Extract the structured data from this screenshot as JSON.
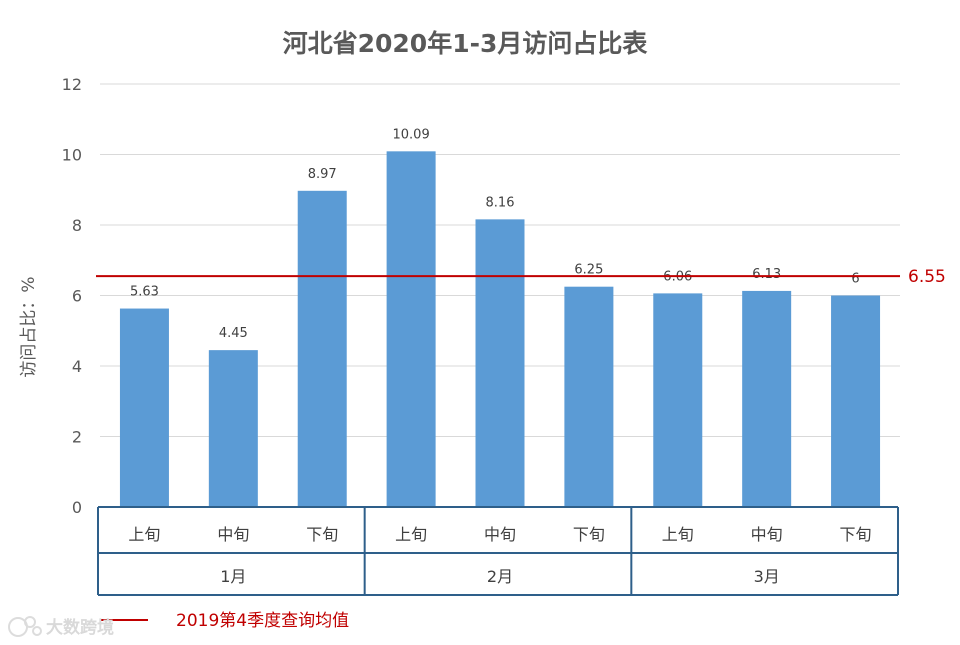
{
  "chart_data": {
    "type": "bar",
    "title": "河北省2020年1-3月访问占比表",
    "ylabel": "访问占比：%",
    "xlabel": "",
    "ylim": [
      0,
      12
    ],
    "yticks": [
      0,
      2,
      4,
      6,
      8,
      10,
      12
    ],
    "grid": true,
    "categories": [
      "上旬",
      "中旬",
      "下旬",
      "上旬",
      "中旬",
      "下旬",
      "上旬",
      "中旬",
      "下旬"
    ],
    "groups": [
      {
        "label": "1月",
        "count": 3
      },
      {
        "label": "2月",
        "count": 3
      },
      {
        "label": "3月",
        "count": 3
      }
    ],
    "series": [
      {
        "values": [
          5.63,
          4.45,
          8.97,
          10.09,
          8.16,
          6.25,
          6.06,
          6.13,
          6
        ],
        "labels": [
          "5.63",
          "4.45",
          "8.97",
          "10.09",
          "8.16",
          "6.25",
          "6.06",
          "6.13",
          "6"
        ],
        "color": "#5b9bd5"
      }
    ],
    "reference_line": {
      "value": 6.55,
      "label": "6.55",
      "legend": "2019第4季度查询均值",
      "color": "#c00000"
    },
    "legend_position": "bottom-left",
    "axis_color": "#2e5f8a",
    "grid_color": "#d9d9d9"
  },
  "watermark": {
    "text": "大数跨境",
    "icon": "logo-icon"
  }
}
